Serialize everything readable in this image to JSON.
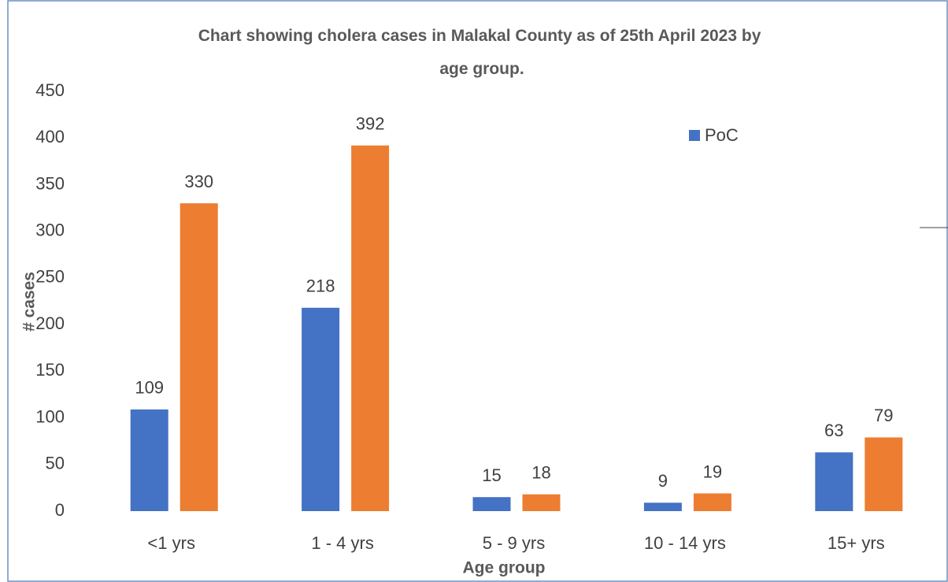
{
  "chart_data": {
    "type": "bar",
    "title": "Chart showing cholera cases in Malakal County as of 25th April 2023 by age group.",
    "x_label": "Age group",
    "y_label": "# cases",
    "categories": [
      "<1 yrs",
      "1 - 4 yrs",
      "5 - 9 yrs",
      "10 - 14 yrs",
      "15+ yrs"
    ],
    "series": [
      {
        "name": "PoC",
        "color": "#4472c4",
        "values": [
          109,
          218,
          15,
          9,
          63
        ]
      },
      {
        "color": "#ed7d31",
        "values": [
          330,
          392,
          18,
          19,
          79
        ]
      }
    ],
    "ylim": [
      0,
      450
    ],
    "yticks": [
      0,
      50,
      100,
      150,
      200,
      250,
      300,
      350,
      400,
      450
    ],
    "grid": false,
    "legend": "top-right"
  }
}
